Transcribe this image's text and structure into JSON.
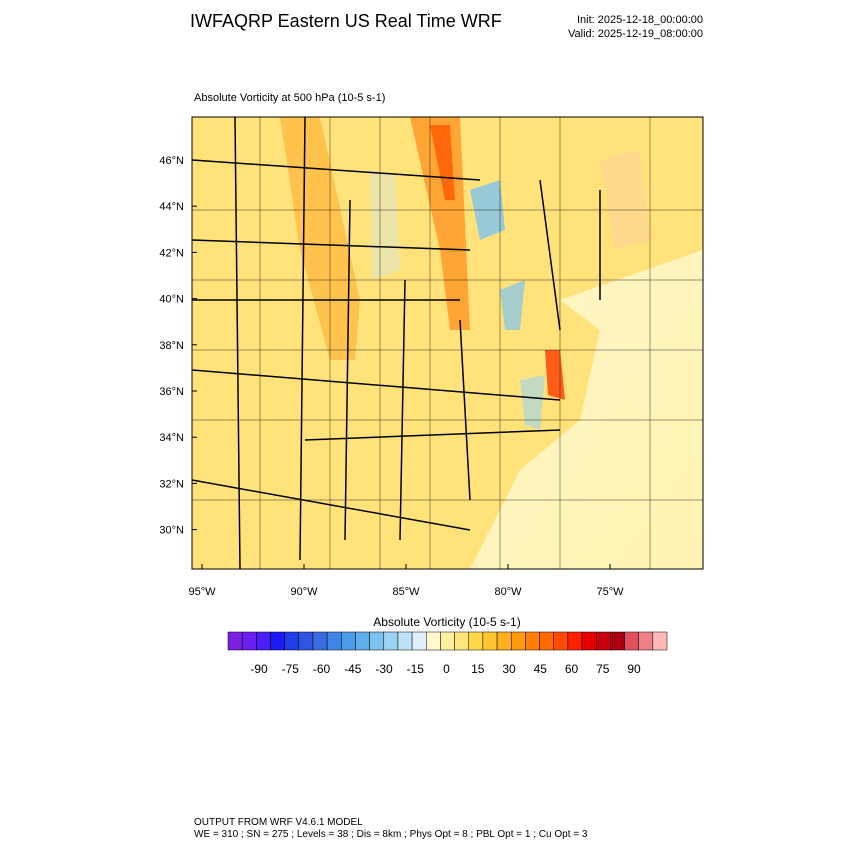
{
  "header": {
    "title": "IWFAQRP Eastern US Real Time WRF",
    "init": "Init: 2025-12-18_00:00:00",
    "valid": "Valid: 2025-12-19_08:00:00"
  },
  "map": {
    "title": "Absolute Vorticity at 500 hPa   (10-5 s-1)",
    "lat_labels": [
      "46°N",
      "44°N",
      "42°N",
      "40°N",
      "38°N",
      "36°N",
      "34°N",
      "32°N",
      "30°N"
    ],
    "lon_labels": [
      "95°W",
      "90°W",
      "85°W",
      "80°W",
      "75°W"
    ]
  },
  "colorbar": {
    "title": "Absolute Vorticity  (10-5 s-1)",
    "labels": [
      -90,
      -75,
      -60,
      -45,
      -30,
      -15,
      0,
      15,
      30,
      45,
      60,
      75,
      90
    ],
    "colors": [
      "#7b1fe0",
      "#6a1ff0",
      "#4a1ff5",
      "#1a1af5",
      "#1e3ee8",
      "#2f55e0",
      "#3a6ee0",
      "#3f85e8",
      "#4a9be8",
      "#5fb0ea",
      "#7dc3ee",
      "#9bd3f2",
      "#bde2f5",
      "#dff0f8",
      "#fff8d0",
      "#fff0a0",
      "#ffe67a",
      "#ffd84a",
      "#ffc830",
      "#ffb020",
      "#ff9a10",
      "#ff8000",
      "#ff6a00",
      "#ff4a00",
      "#ff2000",
      "#e80000",
      "#c80010",
      "#a80010",
      "#e05060",
      "#f08088",
      "#ffb8b8"
    ]
  },
  "footer": {
    "lines": [
      "OUTPUT FROM WRF V4.6.1 MODEL",
      "WE = 310 ; SN = 275 ; Levels = 38 ; Dis = 8km ; Phys Opt = 8 ; PBL Opt = 1 ; Cu Opt = 3"
    ]
  }
}
